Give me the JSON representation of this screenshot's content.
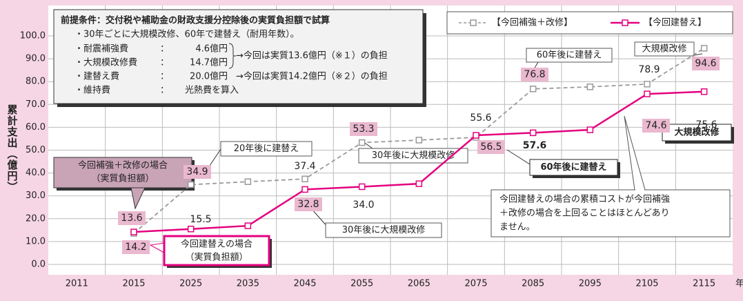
{
  "chart_data": {
    "type": "line",
    "y_label": "累計支出（億円）",
    "x_unit": "年",
    "categories": [
      "2011",
      "2015",
      "2025",
      "2035",
      "2045",
      "2055",
      "2065",
      "2075",
      "2085",
      "2095",
      "2105",
      "2115"
    ],
    "series": [
      {
        "name": "【今回補強＋改修】",
        "color": "#999999",
        "dashed": true,
        "values": [
          null,
          13.6,
          34.9,
          36.2,
          37.4,
          53.3,
          54.4,
          55.6,
          76.8,
          77.7,
          78.9,
          94.6
        ],
        "value_labels": [
          null,
          "13.6",
          "34.9",
          null,
          "37.4",
          "53.3",
          null,
          "55.6",
          "76.8",
          null,
          "78.9",
          "94.6"
        ]
      },
      {
        "name": "【今回建替え】",
        "color": "#e4007f",
        "dashed": false,
        "values": [
          null,
          14.2,
          15.5,
          16.9,
          32.8,
          34.0,
          35.3,
          56.5,
          57.6,
          58.9,
          74.6,
          75.6
        ],
        "value_labels": [
          null,
          "14.2",
          "15.5",
          null,
          "32.8",
          "34.0",
          null,
          "56.5",
          "57.6",
          null,
          "74.6",
          "75.6"
        ]
      }
    ],
    "ylim": [
      0,
      100
    ],
    "yticks": [
      {
        "value": 0,
        "label": "0.0"
      },
      {
        "value": 10,
        "label": "10.0"
      },
      {
        "value": 20,
        "label": "20.0"
      },
      {
        "value": 30,
        "label": "30.0"
      },
      {
        "value": 40,
        "label": "40.0"
      },
      {
        "value": 50,
        "label": "50.0"
      },
      {
        "value": 60,
        "label": "60.0"
      },
      {
        "value": 70,
        "label": "70.0"
      },
      {
        "value": 80,
        "label": "80.0"
      },
      {
        "value": 90,
        "label": "90.0"
      },
      {
        "value": 100,
        "label": "100.0"
      }
    ],
    "grid": true,
    "legend": "top-right",
    "conditions": {
      "title": "前提条件：交付税や補助金の財政支援分控除後の実質負担額で試算",
      "rule": "・30年ごとに大規模改修、60年で建替え（耐用年数）。",
      "items": [
        {
          "label": "・耐震補強費",
          "sep": "：",
          "value": "4.6億円"
        },
        {
          "label": "・大規模改修費",
          "sep": "：",
          "value": "14.7億円"
        },
        {
          "label": "・建替え費",
          "sep": "：",
          "value": "20.0億円"
        },
        {
          "label": "・維持費",
          "sep": "：",
          "value": "光熱費を算入"
        }
      ],
      "notes": [
        "→今回は実質13.6億円（※１）の負担",
        "→今回は実質14.2億円（※２）の負担"
      ]
    },
    "callouts": [
      [
        "今回補強＋改修の場合",
        "（実質負担額）"
      ],
      [
        "今回建替えの場合",
        "（実質負担額）"
      ],
      [
        "20年後に建替え"
      ],
      [
        "30年後に大規模改修"
      ],
      [
        "30年後に大規模改修"
      ],
      [
        "60年後に建替え"
      ],
      [
        "大規模改修"
      ],
      [
        "60年後に建替え"
      ],
      [
        "大規模改修"
      ],
      [
        "今回建替えの場合の累積コストが今回補強",
        "＋改修の場合を上回ることはほとんどあり",
        "ません。"
      ]
    ]
  }
}
